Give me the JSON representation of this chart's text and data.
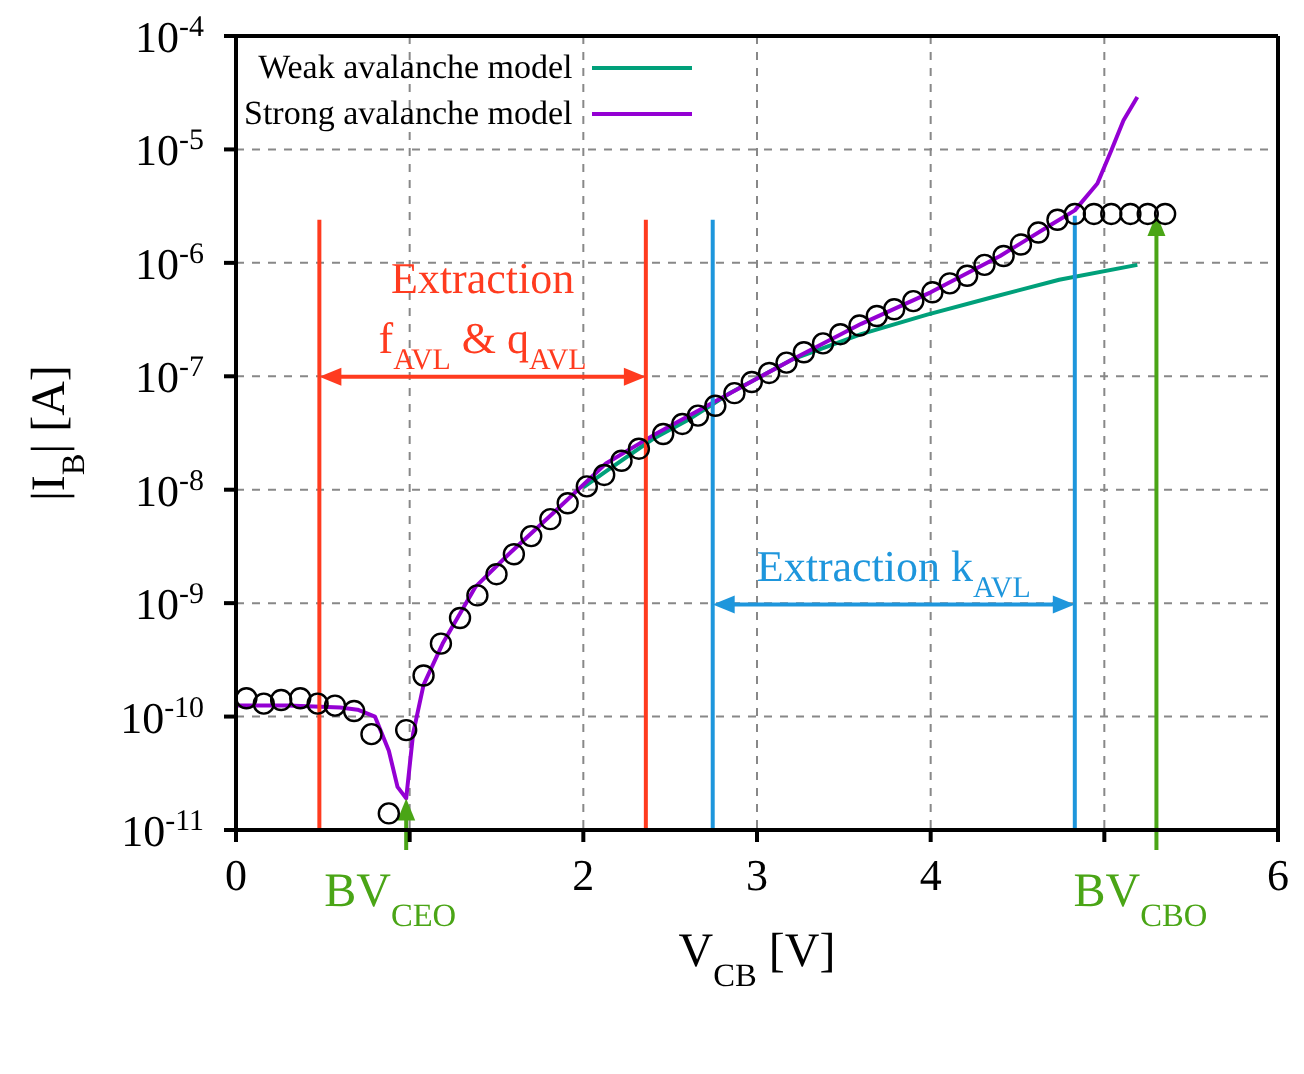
{
  "chart_data": {
    "type": "line",
    "xlabel": "V$_{CB}$  [V]",
    "ylabel": "|I$_{B}$| [A]",
    "xlim": [
      0,
      6
    ],
    "xticks": [
      0,
      {
        "value": 1,
        "label": null
      },
      2,
      3,
      4,
      {
        "value": 5,
        "label": null
      },
      6
    ],
    "ylim": [
      1e-11,
      0.0001
    ],
    "log": true,
    "yticks": [
      {
        "value": 1e-11,
        "label": "10$^{-11}$"
      },
      {
        "value": 1e-10,
        "label": "10$^{-10}$"
      },
      {
        "value": 1e-09,
        "label": "10$^{-9}$"
      },
      {
        "value": 1e-08,
        "label": "10$^{-8}$"
      },
      {
        "value": 1e-07,
        "label": "10$^{-7}$"
      },
      {
        "value": 1e-06,
        "label": "10$^{-6}$"
      },
      {
        "value": 1e-05,
        "label": "10$^{-5}$"
      },
      {
        "value": 0.0001,
        "label": "10$^{-4}$"
      }
    ],
    "grid": true,
    "legend": "top left",
    "series": [
      {
        "type": "scatter",
        "marker": "circle",
        "color": "#000000",
        "x": [
          0.06,
          0.16,
          0.26,
          0.37,
          0.47,
          0.57,
          0.68,
          0.78,
          0.88,
          0.98,
          1.08,
          1.18,
          1.29,
          1.39,
          1.5,
          1.6,
          1.7,
          1.81,
          1.91,
          2.02,
          2.12,
          2.22,
          2.32,
          2.46,
          2.57,
          2.66,
          2.76,
          2.87,
          2.97,
          3.07,
          3.17,
          3.27,
          3.38,
          3.48,
          3.59,
          3.69,
          3.79,
          3.9,
          4.01,
          4.11,
          4.21,
          4.31,
          4.42,
          4.52,
          4.62,
          4.73,
          4.83,
          4.94,
          5.04,
          5.15,
          5.25,
          5.35
        ],
        "values": [
          1.45e-10,
          1.3e-10,
          1.4e-10,
          1.45e-10,
          1.3e-10,
          1.25e-10,
          1.12e-10,
          7e-11,
          1.4e-11,
          7.6e-11,
          2.3e-10,
          4.4e-10,
          7.4e-10,
          1.17e-09,
          1.8e-09,
          2.7e-09,
          3.9e-09,
          5.5e-09,
          7.6e-09,
          1.07e-08,
          1.35e-08,
          1.8e-08,
          2.3e-08,
          3.1e-08,
          3.8e-08,
          4.5e-08,
          5.5e-08,
          7.1e-08,
          8.9e-08,
          1.07e-07,
          1.32e-07,
          1.63e-07,
          1.95e-07,
          2.35e-07,
          2.8e-07,
          3.4e-07,
          3.9e-07,
          4.6e-07,
          5.5e-07,
          6.6e-07,
          7.7e-07,
          9.6e-07,
          1.15e-06,
          1.45e-06,
          1.85e-06,
          2.4e-06,
          2.7e-06,
          2.7e-06,
          2.7e-06,
          2.7e-06,
          2.7e-06,
          2.7e-06
        ]
      },
      {
        "name": "Weak avalanche model",
        "color": "#00a07a",
        "x": [
          2.0,
          2.13,
          2.4,
          2.6,
          2.85,
          3.2,
          3.6,
          3.98,
          4.36,
          4.74,
          5.19
        ],
        "values": [
          1.05e-08,
          1.45e-08,
          2.8e-08,
          4.1e-08,
          7.2e-08,
          1.4e-07,
          2.35e-07,
          3.5e-07,
          5e-07,
          7.1e-07,
          9.6e-07
        ]
      },
      {
        "name": "Strong avalanche model",
        "color": "#9400d3",
        "x": [
          0,
          0.3,
          0.6,
          0.7,
          0.8,
          0.88,
          0.93,
          0.98,
          1.02,
          1.08,
          1.19,
          1.38,
          1.57,
          1.83,
          2.13,
          2.4,
          2.8,
          3.2,
          3.6,
          4.0,
          4.4,
          4.7,
          4.83,
          4.96,
          5.04,
          5.11,
          5.19
        ],
        "values": [
          1.25e-10,
          1.25e-10,
          1.2e-10,
          1.15e-10,
          1e-10,
          5e-11,
          2.4e-11,
          1.9e-11,
          7.1e-11,
          1.9e-10,
          4.4e-10,
          1.4e-09,
          2.7e-09,
          6.3e-09,
          1.7e-08,
          3e-08,
          6.5e-08,
          1.4e-07,
          2.9e-07,
          5.5e-07,
          1.15e-06,
          2.2e-06,
          2.9e-06,
          5e-06,
          9.8e-06,
          1.8e-05,
          2.9e-05
        ]
      },
      {
        "color": "#ff3b1f",
        "x": [
          0.48,
          0.48
        ],
        "values": [
          1e-11,
          2.4e-06
        ]
      },
      {
        "color": "#ff3b1f",
        "x": [
          2.36,
          2.36
        ],
        "values": [
          1e-11,
          2.4e-06
        ]
      },
      {
        "color": "#1e96dc",
        "x": [
          2.745,
          2.745
        ],
        "values": [
          1e-11,
          2.4e-06
        ]
      },
      {
        "color": "#1e96dc",
        "x": [
          4.83,
          4.83
        ],
        "values": [
          1e-11,
          2.6e-06
        ]
      }
    ],
    "annotations": [
      "Extraction\nf$_{AVL}$ & q$_{AVL}$",
      "Extraction k$_{AVL}$",
      {
        "text": "BV$_{CEO}$",
        "x": 0.98,
        "y": 1.9e-11
      },
      {
        "text": "BV$_{CBO}$",
        "x": 5.3,
        "y": 2.7e-06
      }
    ]
  }
}
